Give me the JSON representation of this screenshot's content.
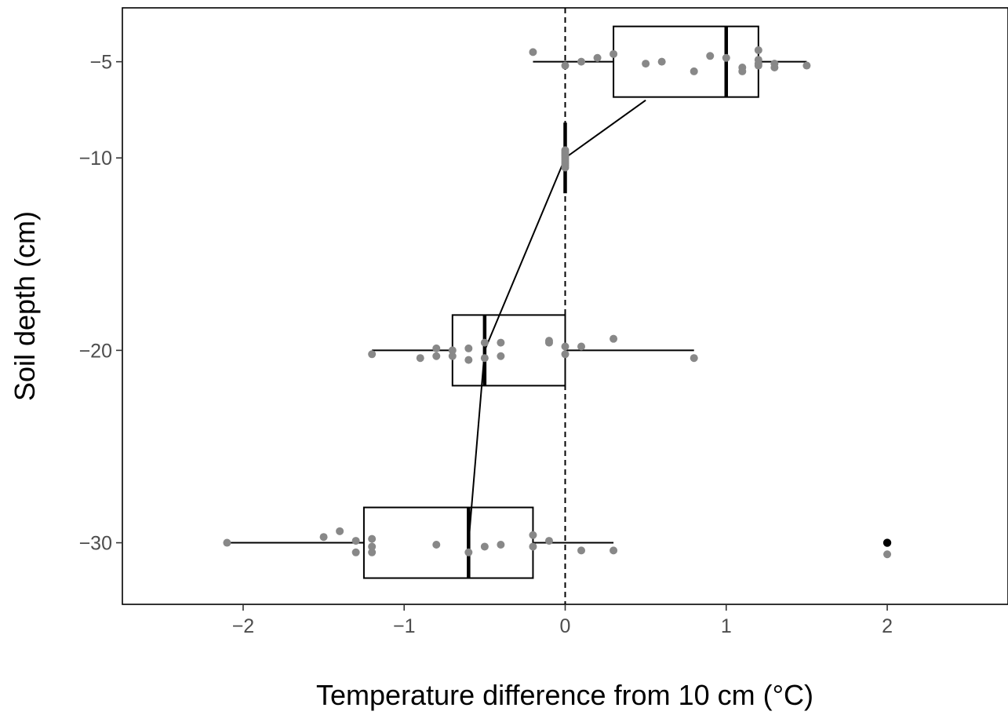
{
  "chart_data": {
    "type": "boxplot",
    "title": "",
    "xlabel": "Temperature difference from 10 cm (°C)",
    "ylabel": "Soil depth (cm)",
    "xlim": [
      -2.75,
      2.75
    ],
    "ylim": [
      -33.2,
      -2.2
    ],
    "x_ticks": [
      -2,
      -1,
      0,
      1,
      2
    ],
    "x_tick_labels": [
      "−2",
      "−1",
      "0",
      "1",
      "2"
    ],
    "y_ticks": [
      -5,
      -10,
      -20,
      -30
    ],
    "y_tick_labels": [
      "−5",
      "−10",
      "−20",
      "−30"
    ],
    "reference_line": {
      "x": 0,
      "style": "dashed"
    },
    "grid": false,
    "legend": "none",
    "boxes": [
      {
        "depth": -5,
        "whisker_low": -0.2,
        "q1": 0.3,
        "median": 1.0,
        "q3": 1.2,
        "whisker_high": 1.5
      },
      {
        "depth": -10,
        "whisker_low": 0.0,
        "q1": 0.0,
        "median": 0.0,
        "q3": 0.0,
        "whisker_high": 0.0
      },
      {
        "depth": -20,
        "whisker_low": -1.2,
        "q1": -0.7,
        "median": -0.5,
        "q3": 0.0,
        "whisker_high": 0.8
      },
      {
        "depth": -30,
        "whisker_low": -2.1,
        "q1": -1.25,
        "median": -0.6,
        "q3": -0.2,
        "whisker_high": 0.3
      }
    ],
    "outliers": [
      {
        "depth": -30,
        "x": 2.0
      }
    ],
    "median_line": [
      {
        "x": 0.5,
        "y": -7.0
      },
      {
        "x": 0.0,
        "y": -10.0
      },
      {
        "x": -0.5,
        "y": -20.0
      },
      {
        "x": -0.6,
        "y": -30.0
      }
    ],
    "points": [
      {
        "x": -0.2,
        "y": -4.5
      },
      {
        "x": 0.0,
        "y": -5.2
      },
      {
        "x": 0.1,
        "y": -5.0
      },
      {
        "x": 0.2,
        "y": -4.8
      },
      {
        "x": 0.3,
        "y": -4.6
      },
      {
        "x": 0.5,
        "y": -5.1
      },
      {
        "x": 0.6,
        "y": -5.0
      },
      {
        "x": 0.8,
        "y": -5.5
      },
      {
        "x": 0.9,
        "y": -4.7
      },
      {
        "x": 1.0,
        "y": -4.8
      },
      {
        "x": 1.1,
        "y": -5.3
      },
      {
        "x": 1.1,
        "y": -5.5
      },
      {
        "x": 1.2,
        "y": -4.4
      },
      {
        "x": 1.2,
        "y": -4.9
      },
      {
        "x": 1.2,
        "y": -5.1
      },
      {
        "x": 1.2,
        "y": -5.2
      },
      {
        "x": 1.3,
        "y": -5.1
      },
      {
        "x": 1.3,
        "y": -5.3
      },
      {
        "x": 1.5,
        "y": -5.2
      },
      {
        "x": 0.0,
        "y": -9.6
      },
      {
        "x": 0.0,
        "y": -9.7
      },
      {
        "x": 0.0,
        "y": -9.8
      },
      {
        "x": 0.0,
        "y": -9.9
      },
      {
        "x": 0.0,
        "y": -10.0
      },
      {
        "x": 0.0,
        "y": -10.1
      },
      {
        "x": 0.0,
        "y": -10.2
      },
      {
        "x": 0.0,
        "y": -10.3
      },
      {
        "x": 0.0,
        "y": -10.4
      },
      {
        "x": 0.0,
        "y": -10.5
      },
      {
        "x": -1.2,
        "y": -20.2
      },
      {
        "x": -0.9,
        "y": -20.4
      },
      {
        "x": -0.8,
        "y": -19.9
      },
      {
        "x": -0.8,
        "y": -20.3
      },
      {
        "x": -0.7,
        "y": -20.0
      },
      {
        "x": -0.7,
        "y": -20.3
      },
      {
        "x": -0.6,
        "y": -19.9
      },
      {
        "x": -0.6,
        "y": -20.5
      },
      {
        "x": -0.5,
        "y": -19.6
      },
      {
        "x": -0.5,
        "y": -20.4
      },
      {
        "x": -0.4,
        "y": -19.6
      },
      {
        "x": -0.4,
        "y": -20.3
      },
      {
        "x": -0.1,
        "y": -19.5
      },
      {
        "x": -0.1,
        "y": -19.6
      },
      {
        "x": 0.0,
        "y": -19.8
      },
      {
        "x": 0.0,
        "y": -20.2
      },
      {
        "x": 0.1,
        "y": -19.8
      },
      {
        "x": 0.3,
        "y": -19.4
      },
      {
        "x": 0.8,
        "y": -20.4
      },
      {
        "x": -2.1,
        "y": -30.0
      },
      {
        "x": -1.5,
        "y": -29.7
      },
      {
        "x": -1.4,
        "y": -29.4
      },
      {
        "x": -1.3,
        "y": -29.9
      },
      {
        "x": -1.3,
        "y": -30.5
      },
      {
        "x": -1.2,
        "y": -29.8
      },
      {
        "x": -1.2,
        "y": -30.2
      },
      {
        "x": -1.2,
        "y": -30.5
      },
      {
        "x": -0.8,
        "y": -30.1
      },
      {
        "x": -0.6,
        "y": -30.5
      },
      {
        "x": -0.5,
        "y": -30.2
      },
      {
        "x": -0.4,
        "y": -30.1
      },
      {
        "x": -0.2,
        "y": -29.6
      },
      {
        "x": -0.2,
        "y": -30.2
      },
      {
        "x": -0.1,
        "y": -29.9
      },
      {
        "x": 0.1,
        "y": -30.4
      },
      {
        "x": 0.3,
        "y": -30.4
      },
      {
        "x": 2.0,
        "y": -30.6
      }
    ],
    "colors": {
      "points": "#888888",
      "outlier": "#000000",
      "lines": "#000000",
      "box_fill": "#ffffff"
    }
  }
}
